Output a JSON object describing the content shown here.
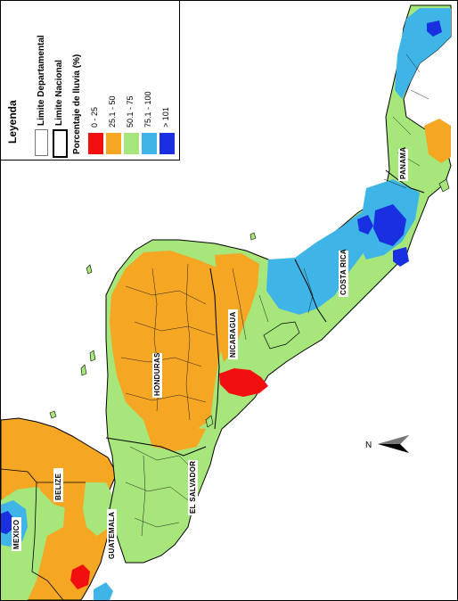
{
  "legend": {
    "title": "Leyenda",
    "boundaries": [
      {
        "label": "Limite Departamental"
      },
      {
        "label": "Limite Nacional"
      }
    ],
    "rain_title": "Porcentaje de lluvia (%)",
    "classes": [
      {
        "label": "0 - 25",
        "color": "#f20f0f"
      },
      {
        "label": "25.1 - 50",
        "color": "#f5a623"
      },
      {
        "label": "50.1 - 75",
        "color": "#a6e67a"
      },
      {
        "label": "75.1 - 100",
        "color": "#3fb4e6"
      },
      {
        "label": "> 101",
        "color": "#1a2fe0"
      }
    ]
  },
  "countries": {
    "panama": "PANAMA",
    "costa_rica": "COSTA RICA",
    "nicaragua": "NICARAGUA",
    "honduras": "HONDURAS",
    "el_salvador": "EL SALVADOR",
    "belize": "BELIZE",
    "guatemala": "GUATEMALA",
    "mexico": "MEXICO"
  },
  "north_arrow": {
    "letter": "N"
  },
  "colors": {
    "sea": "#ffffff",
    "border": "#000000"
  }
}
